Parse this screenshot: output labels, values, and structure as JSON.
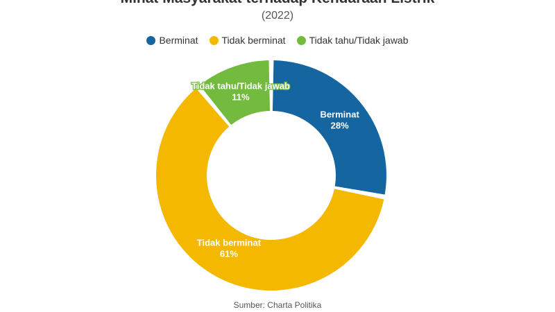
{
  "chart_data": {
    "type": "pie",
    "style": "donut",
    "title": "Minat Masyarakat terhadap Kendaraan Listrik",
    "subtitle": "(2022)",
    "source": "Sumber: Charta Politika",
    "legend_position": "top",
    "categories": [
      "Berminat",
      "Tidak berminat",
      "Tidak tahu/Tidak jawab"
    ],
    "values": [
      28,
      61,
      11
    ],
    "labels": [
      "28%",
      "61%",
      "11%"
    ],
    "colors": [
      "#1565a0",
      "#f5b800",
      "#72bb3f"
    ]
  }
}
